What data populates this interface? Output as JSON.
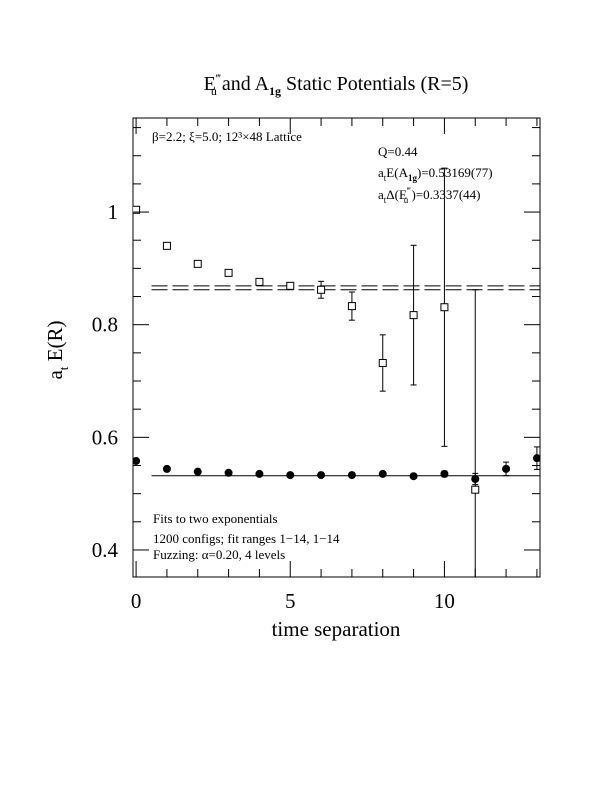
{
  "chart_data": {
    "type": "scatter",
    "title": [
      "E",
      "‴",
      "u",
      " and A",
      "1g",
      " Static Potentials (R=5)"
    ],
    "xlabel": "time separation",
    "ylabel": [
      "a",
      "t",
      " E(R)"
    ],
    "annotations": {
      "lattice": "β=2.2; ξ=5.0; 12³×48 Lattice",
      "q": "Q=0.44",
      "a1g": [
        "a",
        "t",
        "E(A",
        "1g",
        ")=0.53169(77)"
      ],
      "eu": [
        "a",
        "t",
        "Δ(E",
        "‴",
        "u",
        " )=0.3337(44)"
      ],
      "fits": "Fits to two exponentials",
      "configs": "1200 configs; fit ranges 1−14, 1−14",
      "fuzzing": "Fuzzing: α=0.20, 4 levels"
    },
    "x": [
      0,
      1,
      2,
      3,
      4,
      5,
      6,
      7,
      8,
      9,
      10,
      11,
      12,
      13
    ],
    "series": [
      {
        "marker": "square",
        "color": "#000000",
        "values": [
          1.004,
          0.94,
          0.908,
          0.892,
          0.876,
          0.869,
          0.862,
          0.833,
          0.732,
          0.817,
          0.831,
          0.507,
          null,
          null
        ],
        "errors": [
          0.003,
          0.003,
          0.003,
          0.004,
          0.004,
          0.005,
          0.015,
          0.025,
          0.05,
          0.124,
          0.247,
          0.355,
          null,
          null
        ]
      },
      {
        "marker": "circle",
        "color": "#000000",
        "values": [
          0.558,
          0.544,
          0.539,
          0.537,
          0.535,
          0.533,
          0.533,
          0.533,
          0.535,
          0.531,
          0.535,
          0.526,
          0.544,
          0.563
        ],
        "errors": [
          0.002,
          0.002,
          0.002,
          0.002,
          0.002,
          0.002,
          0.002,
          0.003,
          0.003,
          0.004,
          0.005,
          0.01,
          0.012,
          0.02
        ]
      }
    ],
    "fit_lines": [
      {
        "value": 0.53169,
        "xrange": [
          0.5,
          13.1
        ],
        "style": "solid"
      },
      {
        "value": 0.862,
        "xrange": [
          0.5,
          13.1
        ],
        "style": "dashed"
      },
      {
        "value": 0.869,
        "xrange": [
          0.5,
          13.1
        ],
        "style": "dashed"
      }
    ],
    "xlim": [
      -0.1,
      13.1
    ],
    "ylim": [
      0.352,
      1.167
    ],
    "xticks": [
      0,
      5,
      10
    ],
    "yticks": [
      0.4,
      0.6,
      0.8,
      1
    ],
    "xminorticks": [
      1,
      2,
      3,
      4,
      6,
      7,
      8,
      9,
      11,
      12,
      13
    ],
    "yminorticks": [
      0.45,
      0.5,
      0.55,
      0.65,
      0.7,
      0.75,
      0.85,
      0.9,
      0.95,
      1.05,
      1.1,
      1.15
    ]
  }
}
